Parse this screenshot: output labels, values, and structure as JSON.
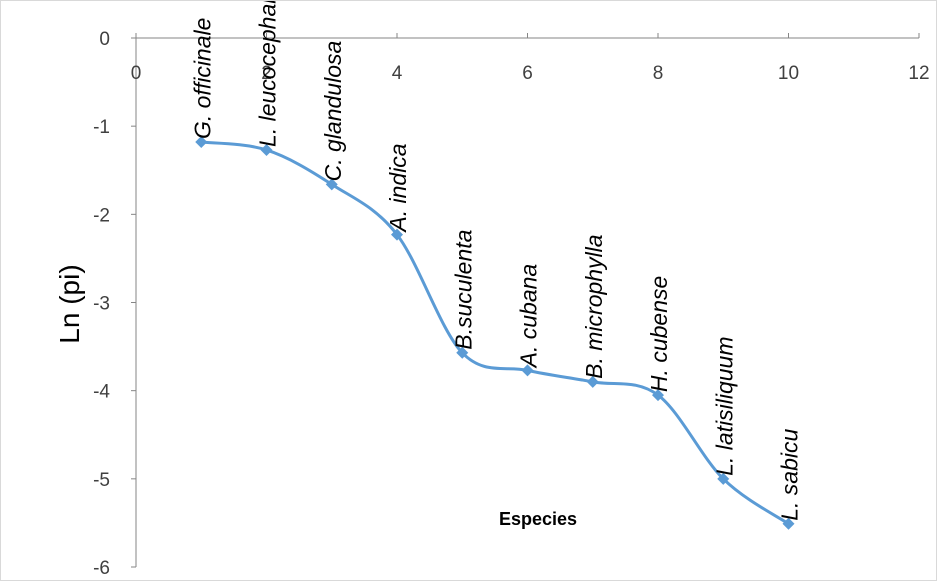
{
  "chart_data": {
    "type": "line",
    "title": "",
    "xlabel": "Especies",
    "ylabel": "Ln (pi)",
    "xlim": [
      0,
      12
    ],
    "ylim": [
      -6,
      0
    ],
    "x_ticks": [
      0,
      2,
      4,
      6,
      8,
      10,
      12
    ],
    "y_ticks": [
      0,
      -1,
      -2,
      -3,
      -4,
      -5,
      -6
    ],
    "grid": false,
    "legend": "none",
    "smooth": true,
    "line_color": "#5b9bd5",
    "points": [
      {
        "x": 1,
        "y": -1.18,
        "label": "G. officinale"
      },
      {
        "x": 2,
        "y": -1.27,
        "label": "L. leucocephala"
      },
      {
        "x": 3,
        "y": -1.66,
        "label": "C. glandulosa"
      },
      {
        "x": 4,
        "y": -2.23,
        "label": "A. indica"
      },
      {
        "x": 5,
        "y": -3.57,
        "label": "B.suculenta"
      },
      {
        "x": 6,
        "y": -3.77,
        "label": "A. cubana"
      },
      {
        "x": 7,
        "y": -3.9,
        "label": "B. microphylla"
      },
      {
        "x": 8,
        "y": -4.05,
        "label": "H. cubense"
      },
      {
        "x": 9,
        "y": -5.0,
        "label": "L. latisiliquum"
      },
      {
        "x": 10,
        "y": -5.51,
        "label": "L. sabicu"
      }
    ]
  }
}
